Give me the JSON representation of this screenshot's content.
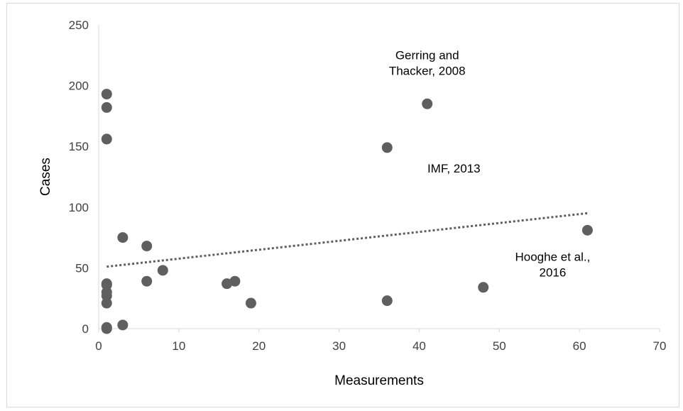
{
  "chart_data": {
    "type": "scatter",
    "title": "",
    "xlabel": "Measurements",
    "ylabel": "Cases",
    "xlim": [
      0,
      70
    ],
    "ylim": [
      0,
      250
    ],
    "x_ticks": [
      0,
      10,
      20,
      30,
      40,
      50,
      60,
      70
    ],
    "y_ticks": [
      0,
      50,
      100,
      150,
      200,
      250
    ],
    "grid": false,
    "legend": "none",
    "colors": {
      "points": "#5f5f5f",
      "trendline": "#5f5f5f",
      "axis": "#d9d9d9"
    },
    "series": [
      {
        "points": [
          {
            "x": 1,
            "y": 193
          },
          {
            "x": 1,
            "y": 182
          },
          {
            "x": 1,
            "y": 156
          },
          {
            "x": 1,
            "y": 37
          },
          {
            "x": 1,
            "y": 36
          },
          {
            "x": 1,
            "y": 30
          },
          {
            "x": 1,
            "y": 27
          },
          {
            "x": 1,
            "y": 21
          },
          {
            "x": 1,
            "y": 1
          },
          {
            "x": 1,
            "y": 0
          },
          {
            "x": 3,
            "y": 75
          },
          {
            "x": 3,
            "y": 3
          },
          {
            "x": 6,
            "y": 68
          },
          {
            "x": 6,
            "y": 39
          },
          {
            "x": 8,
            "y": 48
          },
          {
            "x": 16,
            "y": 37
          },
          {
            "x": 17,
            "y": 39
          },
          {
            "x": 19,
            "y": 21
          },
          {
            "x": 36,
            "y": 149
          },
          {
            "x": 36,
            "y": 23
          },
          {
            "x": 41,
            "y": 185
          },
          {
            "x": 48,
            "y": 34
          },
          {
            "x": 61,
            "y": 81
          }
        ]
      }
    ],
    "trendline": {
      "type": "linear",
      "style": "dotted",
      "x_start": 1,
      "y_start": 51,
      "x_end": 61,
      "y_end": 95
    },
    "annotations": [
      {
        "lines": [
          "Gerring and",
          "Thacker, 2008"
        ],
        "x": 41,
        "y": 185
      },
      {
        "lines": [
          "IMF, 2013"
        ],
        "x": 36,
        "y": 149
      },
      {
        "lines": [
          "Hooghe et al.,",
          "2016"
        ],
        "x": 61,
        "y": 81
      }
    ]
  }
}
